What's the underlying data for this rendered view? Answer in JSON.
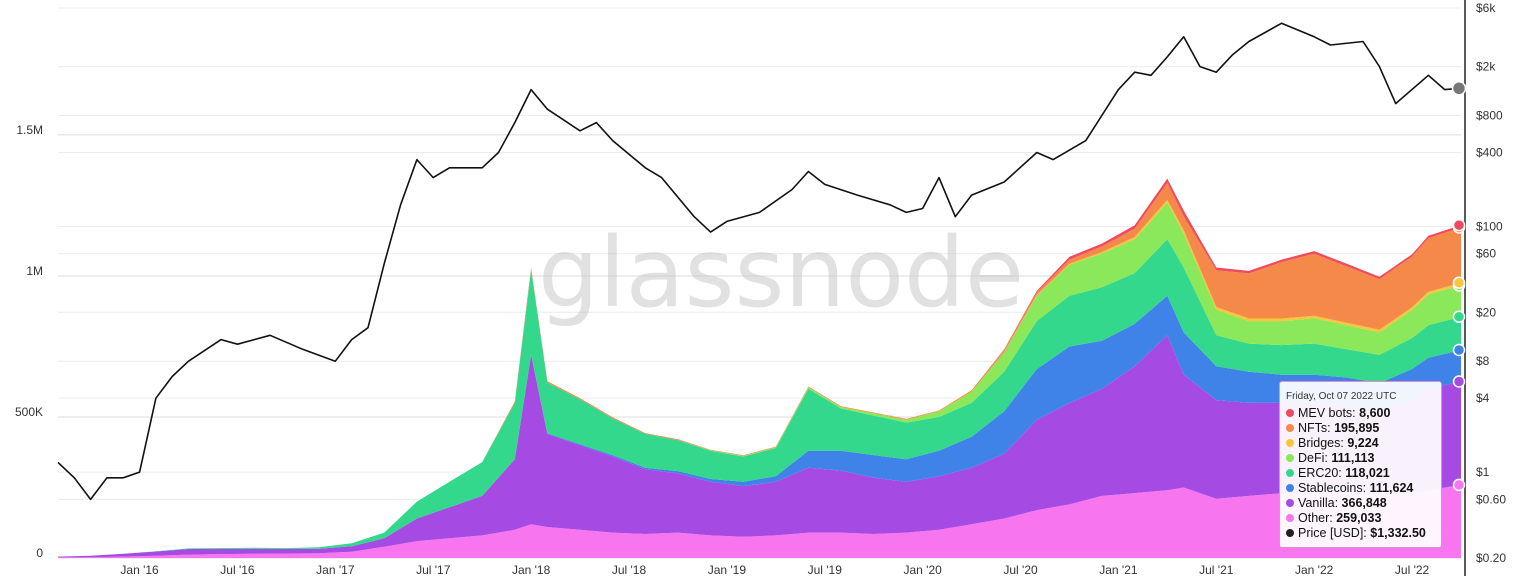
{
  "watermark": "glassnode",
  "tooltip": {
    "date": "Friday, Oct 07 2022 UTC",
    "rows": [
      {
        "label": "MEV bots",
        "value": "8,600",
        "color": "#ef4b5e"
      },
      {
        "label": "NFTs",
        "value": "195,895",
        "color": "#f5894a"
      },
      {
        "label": "Bridges",
        "value": "9,224",
        "color": "#f7c63b"
      },
      {
        "label": "DeFi",
        "value": "111,113",
        "color": "#8be85a"
      },
      {
        "label": "ERC20",
        "value": "118,021",
        "color": "#33d88c"
      },
      {
        "label": "Stablecoins",
        "value": "111,624",
        "color": "#3f83e8"
      },
      {
        "label": "Vanilla",
        "value": "366,848",
        "color": "#a54be3"
      },
      {
        "label": "Other",
        "value": "259,033",
        "color": "#f776f0"
      },
      {
        "label": "Price [USD]",
        "value": "$1,332.50",
        "color": "#222222"
      }
    ]
  },
  "chart_data": {
    "type": "area",
    "stacked": true,
    "x": [
      "2015-08",
      "2015-10",
      "2015-12",
      "2016-02",
      "2016-04",
      "2016-06",
      "2016-08",
      "2016-10",
      "2016-12",
      "2017-02",
      "2017-04",
      "2017-06",
      "2017-08",
      "2017-10",
      "2017-12",
      "2018-01",
      "2018-02",
      "2018-04",
      "2018-06",
      "2018-08",
      "2018-10",
      "2018-12",
      "2019-02",
      "2019-04",
      "2019-06",
      "2019-08",
      "2019-10",
      "2019-12",
      "2020-02",
      "2020-04",
      "2020-06",
      "2020-08",
      "2020-10",
      "2020-12",
      "2021-02",
      "2021-04",
      "2021-05",
      "2021-07",
      "2021-09",
      "2021-11",
      "2022-01",
      "2022-03",
      "2022-05",
      "2022-07",
      "2022-08",
      "2022-10"
    ],
    "series": [
      {
        "name": "Other",
        "color": "#f776f0",
        "values": [
          2000,
          3000,
          5000,
          8000,
          12000,
          14000,
          15000,
          16000,
          17000,
          22000,
          40000,
          60000,
          70000,
          80000,
          100000,
          120000,
          110000,
          100000,
          90000,
          85000,
          90000,
          80000,
          75000,
          80000,
          90000,
          90000,
          85000,
          90000,
          100000,
          120000,
          140000,
          170000,
          190000,
          220000,
          230000,
          240000,
          250000,
          210000,
          220000,
          230000,
          240000,
          230000,
          220000,
          230000,
          240000,
          259033
        ]
      },
      {
        "name": "Vanilla",
        "color": "#a54be3",
        "values": [
          3000,
          5000,
          10000,
          15000,
          20000,
          18000,
          18000,
          16000,
          16000,
          20000,
          30000,
          80000,
          110000,
          140000,
          250000,
          600000,
          330000,
          300000,
          270000,
          230000,
          210000,
          190000,
          180000,
          190000,
          230000,
          220000,
          200000,
          180000,
          190000,
          200000,
          230000,
          320000,
          360000,
          380000,
          450000,
          550000,
          400000,
          350000,
          330000,
          320000,
          310000,
          310000,
          300000,
          330000,
          360000,
          366848
        ]
      },
      {
        "name": "Stablecoins",
        "color": "#3f83e8",
        "values": [
          0,
          0,
          0,
          0,
          0,
          0,
          0,
          0,
          0,
          0,
          0,
          0,
          0,
          0,
          0,
          2000,
          2000,
          3000,
          5000,
          5000,
          8000,
          10000,
          15000,
          20000,
          60000,
          70000,
          80000,
          80000,
          90000,
          110000,
          150000,
          180000,
          200000,
          170000,
          150000,
          140000,
          150000,
          120000,
          110000,
          100000,
          100000,
          100000,
          100000,
          110000,
          110000,
          111624
        ]
      },
      {
        "name": "ERC20",
        "color": "#33d88c",
        "values": [
          0,
          0,
          0,
          1000,
          2000,
          3000,
          3000,
          3000,
          5000,
          10000,
          20000,
          60000,
          90000,
          120000,
          200000,
          300000,
          180000,
          160000,
          130000,
          120000,
          110000,
          100000,
          90000,
          100000,
          220000,
          150000,
          140000,
          130000,
          120000,
          120000,
          140000,
          170000,
          180000,
          190000,
          180000,
          200000,
          230000,
          110000,
          100000,
          105000,
          110000,
          100000,
          100000,
          110000,
          115000,
          118021
        ]
      },
      {
        "name": "DeFi",
        "color": "#8be85a",
        "values": [
          0,
          0,
          0,
          0,
          0,
          0,
          0,
          0,
          0,
          0,
          0,
          0,
          0,
          0,
          0,
          0,
          0,
          0,
          0,
          0,
          0,
          2000,
          2000,
          3000,
          5000,
          5000,
          8000,
          10000,
          20000,
          40000,
          70000,
          90000,
          110000,
          120000,
          120000,
          130000,
          120000,
          90000,
          80000,
          85000,
          90000,
          85000,
          80000,
          100000,
          110000,
          111113
        ]
      },
      {
        "name": "Bridges",
        "color": "#f7c63b",
        "values": [
          0,
          0,
          0,
          0,
          0,
          0,
          0,
          0,
          0,
          0,
          0,
          0,
          0,
          0,
          0,
          0,
          0,
          0,
          0,
          0,
          0,
          0,
          0,
          0,
          0,
          0,
          0,
          0,
          0,
          0,
          0,
          2000,
          3000,
          5000,
          8000,
          10000,
          12000,
          10000,
          9000,
          9000,
          9000,
          9000,
          9000,
          9000,
          9200,
          9224
        ]
      },
      {
        "name": "NFTs",
        "color": "#f5894a",
        "values": [
          0,
          0,
          0,
          0,
          0,
          0,
          0,
          0,
          0,
          0,
          0,
          0,
          0,
          0,
          5000,
          8000,
          5000,
          4000,
          4000,
          3000,
          3000,
          2000,
          2000,
          2000,
          3000,
          3000,
          3000,
          3000,
          3000,
          5000,
          8000,
          10000,
          15000,
          20000,
          30000,
          60000,
          50000,
          130000,
          160000,
          200000,
          220000,
          200000,
          180000,
          180000,
          190000,
          195895
        ]
      },
      {
        "name": "MEV bots",
        "color": "#ef4b5e",
        "values": [
          0,
          0,
          0,
          0,
          0,
          0,
          0,
          0,
          0,
          0,
          0,
          0,
          0,
          0,
          0,
          0,
          0,
          0,
          0,
          0,
          0,
          0,
          0,
          0,
          0,
          0,
          0,
          0,
          0,
          0,
          2000,
          5000,
          10000,
          10000,
          12000,
          15000,
          20000,
          10000,
          9000,
          9000,
          9000,
          9000,
          8000,
          8000,
          8600,
          8600
        ]
      }
    ],
    "price": {
      "name": "Price [USD]",
      "color": "#111111",
      "x": [
        "2015-08",
        "2015-09",
        "2015-10",
        "2015-11",
        "2015-12",
        "2016-01",
        "2016-02",
        "2016-03",
        "2016-04",
        "2016-06",
        "2016-07",
        "2016-09",
        "2016-11",
        "2017-01",
        "2017-02",
        "2017-03",
        "2017-04",
        "2017-05",
        "2017-06",
        "2017-07",
        "2017-08",
        "2017-09",
        "2017-10",
        "2017-11",
        "2017-12",
        "2018-01",
        "2018-02",
        "2018-04",
        "2018-05",
        "2018-06",
        "2018-08",
        "2018-09",
        "2018-11",
        "2018-12",
        "2019-01",
        "2019-03",
        "2019-05",
        "2019-06",
        "2019-07",
        "2019-09",
        "2019-11",
        "2019-12",
        "2020-01",
        "2020-02",
        "2020-03",
        "2020-04",
        "2020-06",
        "2020-08",
        "2020-09",
        "2020-11",
        "2021-01",
        "2021-02",
        "2021-03",
        "2021-04",
        "2021-05",
        "2021-06",
        "2021-07",
        "2021-08",
        "2021-09",
        "2021-11",
        "2022-01",
        "2022-02",
        "2022-04",
        "2022-05",
        "2022-06",
        "2022-08",
        "2022-09",
        "2022-10"
      ],
      "values": [
        1.2,
        0.9,
        0.6,
        0.9,
        0.9,
        1.0,
        4,
        6,
        8,
        12,
        11,
        13,
        10,
        8,
        12,
        15,
        50,
        150,
        350,
        250,
        300,
        300,
        300,
        400,
        700,
        1300,
        900,
        600,
        700,
        500,
        300,
        250,
        120,
        90,
        110,
        130,
        200,
        280,
        220,
        180,
        150,
        130,
        140,
        250,
        120,
        180,
        230,
        400,
        350,
        500,
        1300,
        1800,
        1700,
        2400,
        3500,
        2000,
        1800,
        2500,
        3200,
        4500,
        3500,
        3000,
        3200,
        2000,
        1000,
        1700,
        1300,
        1332.5
      ]
    },
    "yleft": {
      "ticks": [
        0,
        500000,
        1000000,
        1500000
      ],
      "tick_labels": [
        "0",
        "500K",
        "1M",
        "1.5M"
      ],
      "range": [
        0,
        1950000
      ]
    },
    "yright": {
      "scale": "log",
      "ticks": [
        0.2,
        0.6,
        1,
        4,
        8,
        20,
        60,
        100,
        400,
        800,
        2000,
        6000
      ],
      "tick_labels": [
        "$0.20",
        "$0.60",
        "$1",
        "$4",
        "$8",
        "$20",
        "$60",
        "$100",
        "$400",
        "$800",
        "$2k",
        "$6k"
      ],
      "range": [
        0.2,
        6000
      ]
    },
    "xaxis": {
      "ticks": [
        "2016-01",
        "2016-07",
        "2017-01",
        "2017-07",
        "2018-01",
        "2018-07",
        "2019-01",
        "2019-07",
        "2020-01",
        "2020-07",
        "2021-01",
        "2021-07",
        "2022-01",
        "2022-07"
      ],
      "tick_labels": [
        "Jan '16",
        "Jul '16",
        "Jan '17",
        "Jul '17",
        "Jan '18",
        "Jul '18",
        "Jan '19",
        "Jul '19",
        "Jan '20",
        "Jul '20",
        "Jan '21",
        "Jul '21",
        "Jan '22",
        "Jul '22"
      ],
      "range": [
        "2015-08",
        "2022-10"
      ]
    },
    "grid": true
  }
}
